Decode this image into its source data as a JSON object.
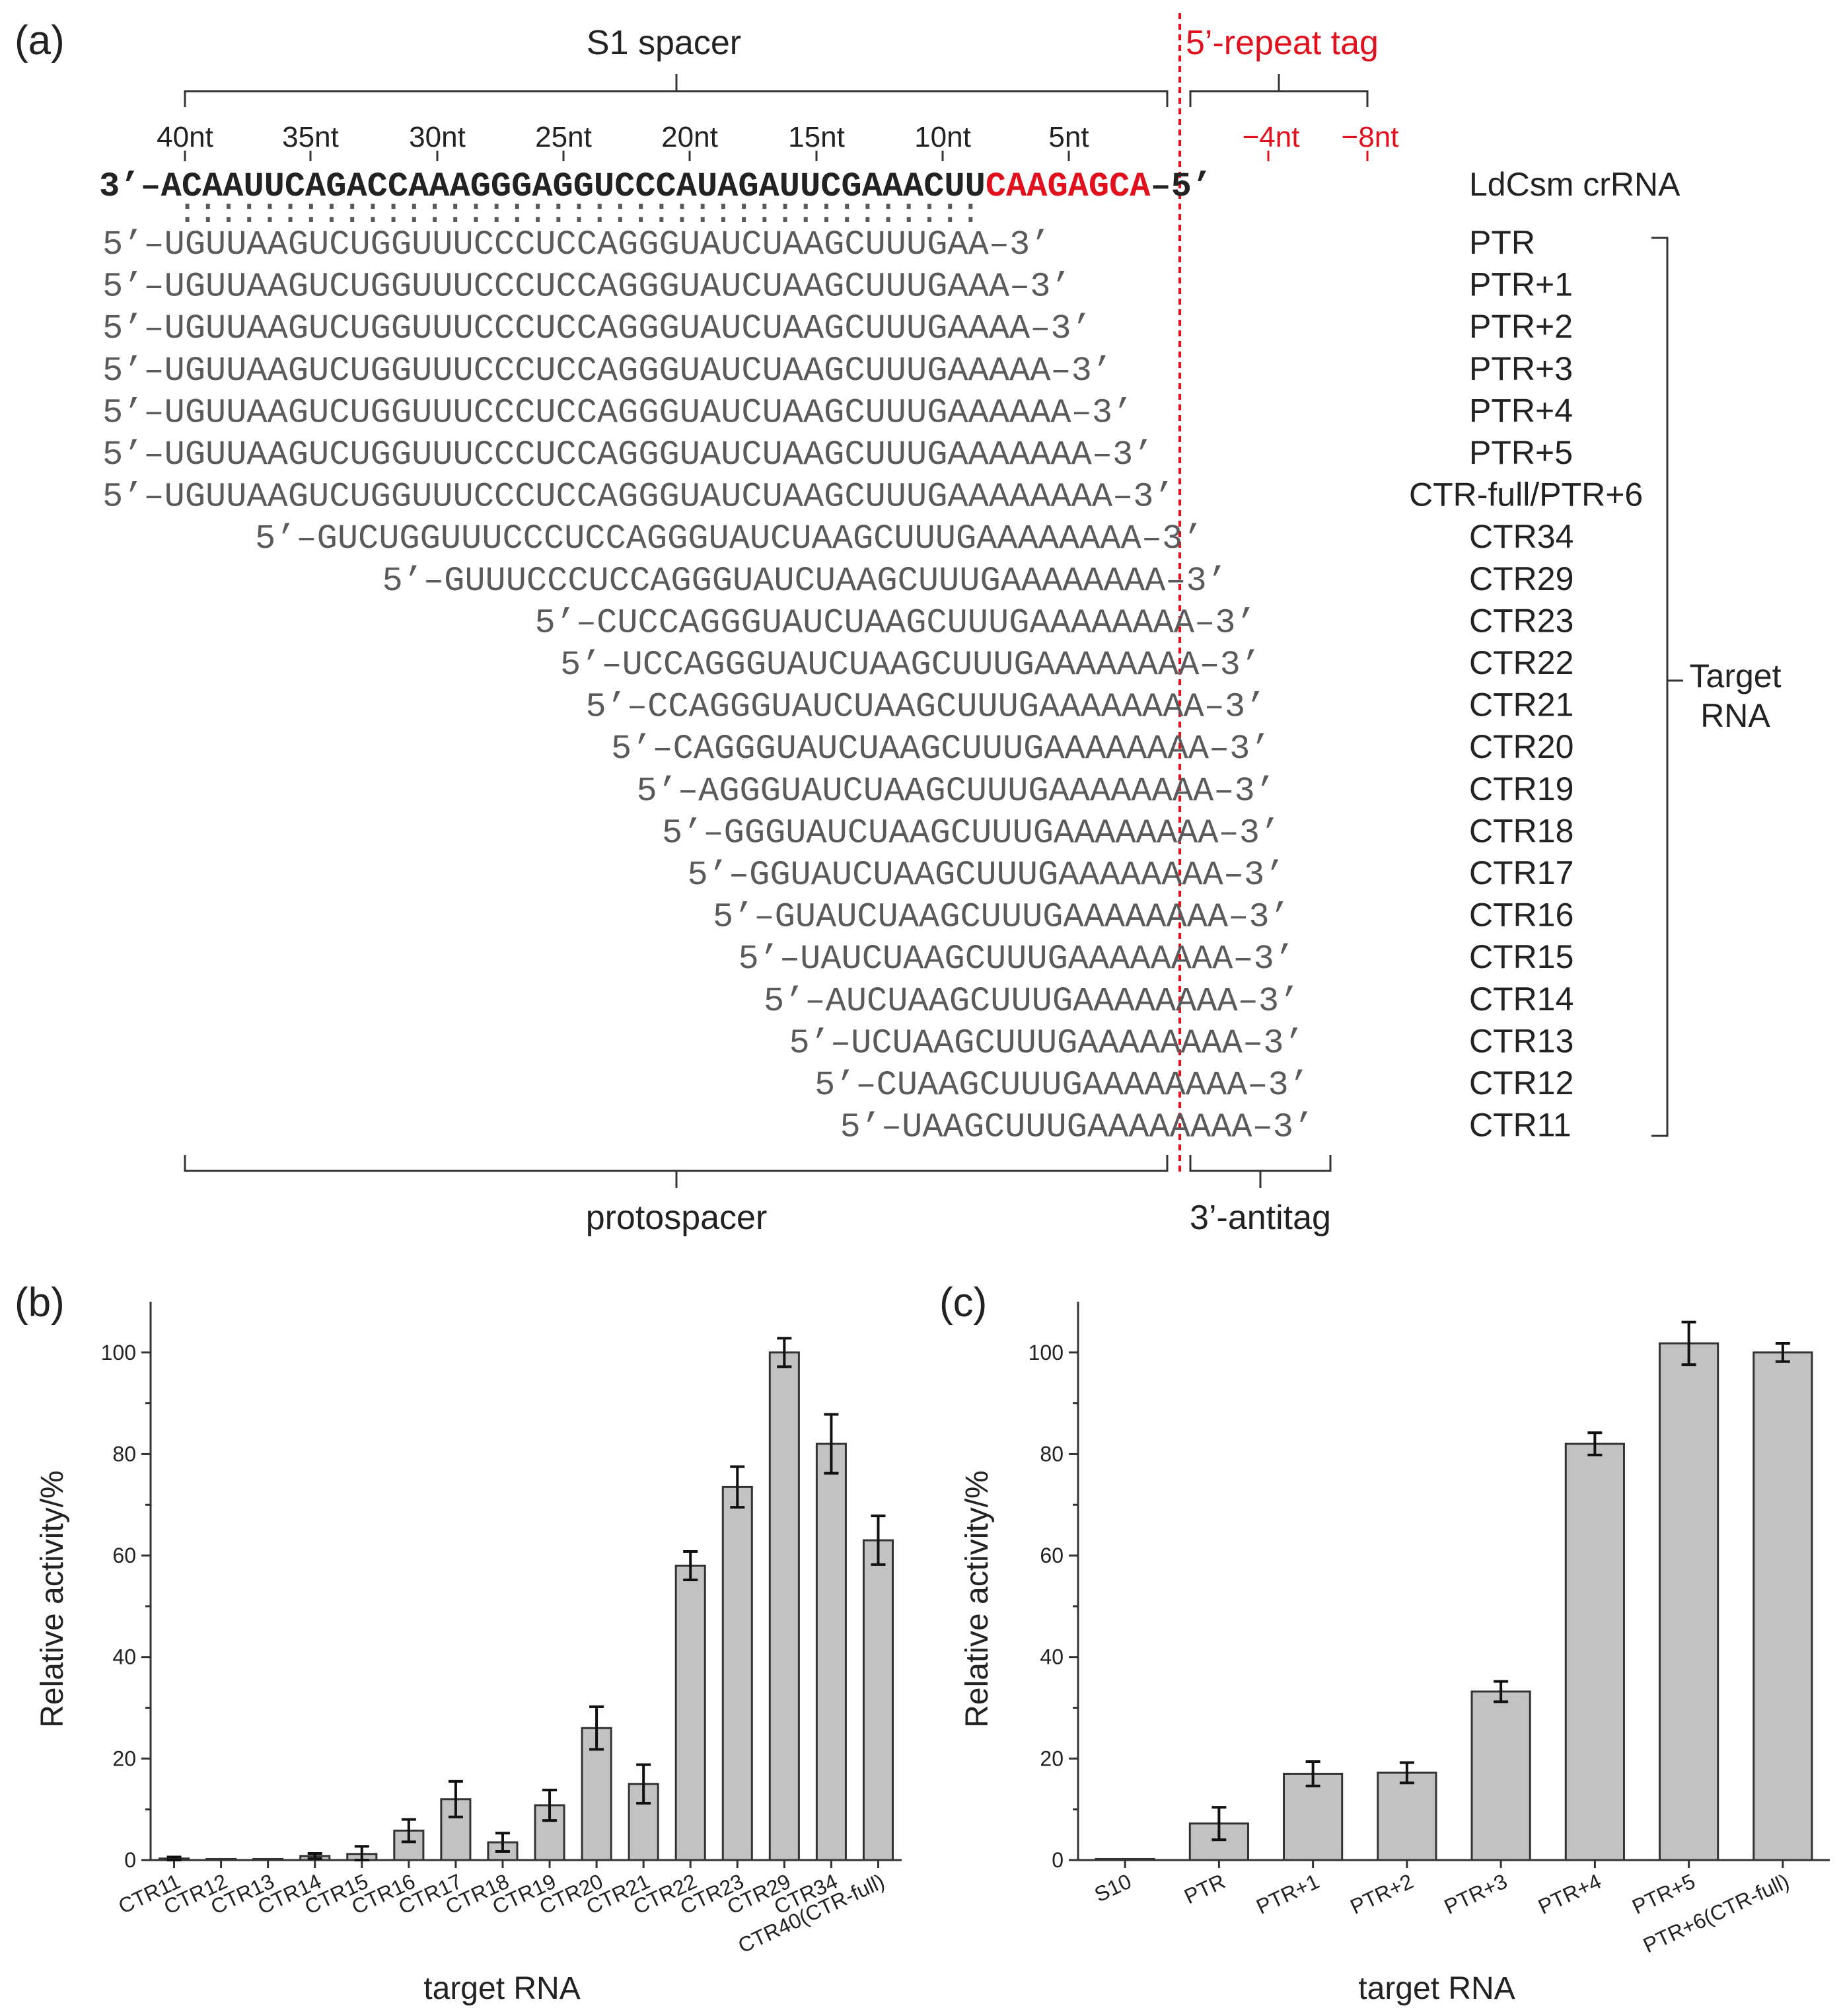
{
  "panel_a": {
    "label": "(a)",
    "spacer_title": "S1 spacer",
    "repeat_tag_title": "5’-repeat tag",
    "position_labels": [
      "40nt",
      "35nt",
      "30nt",
      "25nt",
      "20nt",
      "15nt",
      "10nt",
      "5nt"
    ],
    "repeat_position_labels": [
      "−4nt",
      "−8nt"
    ],
    "crrna": {
      "prefix": "3’–",
      "spacer_seq": "ACAAUUCAGACCAAAGGGAGGUCCCAUAGAUUCGAAACUU",
      "tag_seq": "CAAGAGCA",
      "suffix": "–5’",
      "name": "LdCsm crRNA"
    },
    "pairing_marks": ":::::::::::::::::::::::::::::::::::::::",
    "targets": [
      {
        "seq": "5’–UGUUAAGUCUGGUUUCCCUCCAGGGUAUCUAAGCUUUGAA–3’",
        "offset": 0,
        "name": "PTR"
      },
      {
        "seq": "5’–UGUUAAGUCUGGUUUCCCUCCAGGGUAUCUAAGCUUUGAAA–3’",
        "offset": 0,
        "name": "PTR+1"
      },
      {
        "seq": "5’–UGUUAAGUCUGGUUUCCCUCCAGGGUAUCUAAGCUUUGAAAA–3’",
        "offset": 0,
        "name": "PTR+2"
      },
      {
        "seq": "5’–UGUUAAGUCUGGUUUCCCUCCAGGGUAUCUAAGCUUUGAAAAA–3’",
        "offset": 0,
        "name": "PTR+3"
      },
      {
        "seq": "5’–UGUUAAGUCUGGUUUCCCUCCAGGGUAUCUAAGCUUUGAAAAAA–3’",
        "offset": 0,
        "name": "PTR+4"
      },
      {
        "seq": "5’–UGUUAAGUCUGGUUUCCCUCCAGGGUAUCUAAGCUUUGAAAAAAA–3’",
        "offset": 0,
        "name": "PTR+5"
      },
      {
        "seq": "5’–UGUUAAGUCUGGUUUCCCUCCAGGGUAUCUAAGCUUUGAAAAAAAA–3’",
        "offset": 0,
        "name": "CTR-full/PTR+6"
      },
      {
        "seq": "5’–GUCUGGUUUCCCUCCAGGGUAUCUAAGCUUUGAAAAAAAA–3’",
        "offset": 6,
        "name": "CTR34"
      },
      {
        "seq": "5’–GUUUCCCUCCAGGGUAUCUAAGCUUUGAAAAAAAA–3’",
        "offset": 11,
        "name": "CTR29"
      },
      {
        "seq": "5’–CUCCAGGGUAUCUAAGCUUUGAAAAAAAA–3’",
        "offset": 17,
        "name": "CTR23"
      },
      {
        "seq": "5’–UCCAGGGUAUCUAAGCUUUGAAAAAAAA–3’",
        "offset": 18,
        "name": "CTR22"
      },
      {
        "seq": "5’–CCAGGGUAUCUAAGCUUUGAAAAAAAA–3’",
        "offset": 19,
        "name": "CTR21"
      },
      {
        "seq": "5’–CAGGGUAUCUAAGCUUUGAAAAAAAA–3’",
        "offset": 20,
        "name": "CTR20"
      },
      {
        "seq": "5’–AGGGUAUCUAAGCUUUGAAAAAAAA–3’",
        "offset": 21,
        "name": "CTR19"
      },
      {
        "seq": "5’–GGGUAUCUAAGCUUUGAAAAAAAA–3’",
        "offset": 22,
        "name": "CTR18"
      },
      {
        "seq": "5’–GGUAUCUAAGCUUUGAAAAAAAA–3’",
        "offset": 23,
        "name": "CTR17"
      },
      {
        "seq": "5’–GUAUCUAAGCUUUGAAAAAAAA–3’",
        "offset": 24,
        "name": "CTR16"
      },
      {
        "seq": "5’–UAUCUAAGCUUUGAAAAAAAA–3’",
        "offset": 25,
        "name": "CTR15"
      },
      {
        "seq": "5’–AUCUAAGCUUUGAAAAAAAA–3’",
        "offset": 26,
        "name": "CTR14"
      },
      {
        "seq": "5’–UCUAAGCUUUGAAAAAAAA–3’",
        "offset": 27,
        "name": "CTR13"
      },
      {
        "seq": "5’–CUAAGCUUUGAAAAAAAA–3’",
        "offset": 28,
        "name": "CTR12"
      },
      {
        "seq": "5’–UAAGCUUUGAAAAAAAA–3’",
        "offset": 29,
        "name": "CTR11"
      }
    ],
    "target_rna_label": [
      "Target",
      "RNA"
    ],
    "protospacer_label": "protospacer",
    "antitag_label": "3’-antitag",
    "colors": {
      "repeat_tag": "#e0101c",
      "text": "#222222",
      "seq_gray": "#5a5a5a"
    }
  },
  "chart_data": [
    {
      "panel": "(b)",
      "type": "bar",
      "categories": [
        "CTR11",
        "CTR12",
        "CTR13",
        "CTR14",
        "CTR15",
        "CTR16",
        "CTR17",
        "CTR18",
        "CTR19",
        "CTR20",
        "CTR21",
        "CTR22",
        "CTR23",
        "CTR29",
        "CTR34",
        "CTR40(CTR-full)"
      ],
      "values": [
        0.3,
        0.2,
        0.2,
        0.8,
        1.2,
        5.8,
        12.0,
        3.5,
        10.8,
        26.0,
        15.0,
        58.0,
        73.5,
        100.0,
        82.0,
        63.0
      ],
      "errors": [
        0.3,
        0.2,
        0.2,
        0.5,
        1.5,
        2.2,
        3.5,
        1.8,
        3.0,
        4.2,
        3.8,
        2.8,
        4.0,
        2.8,
        5.8,
        4.8
      ],
      "xlabel": "target RNA",
      "ylabel": "Relative activity/%",
      "ylim": [
        0,
        110
      ],
      "yticks": [
        0,
        20,
        40,
        60,
        80,
        100
      ],
      "bar_color": "#c2c2c2"
    },
    {
      "panel": "(c)",
      "type": "bar",
      "categories": [
        "S10",
        "PTR",
        "PTR+1",
        "PTR+2",
        "PTR+3",
        "PTR+4",
        "PTR+5",
        "PTR+6(CTR-full)"
      ],
      "values": [
        0.2,
        7.2,
        17.0,
        17.2,
        33.2,
        82.0,
        101.8,
        100.0
      ],
      "errors": [
        0.2,
        3.2,
        2.4,
        2.0,
        2.0,
        2.2,
        4.2,
        1.8
      ],
      "xlabel": "target RNA",
      "ylabel": "Relative activity/%",
      "ylim": [
        0,
        110
      ],
      "yticks": [
        0,
        20,
        40,
        60,
        80,
        100
      ],
      "bar_color": "#c2c2c2"
    }
  ]
}
